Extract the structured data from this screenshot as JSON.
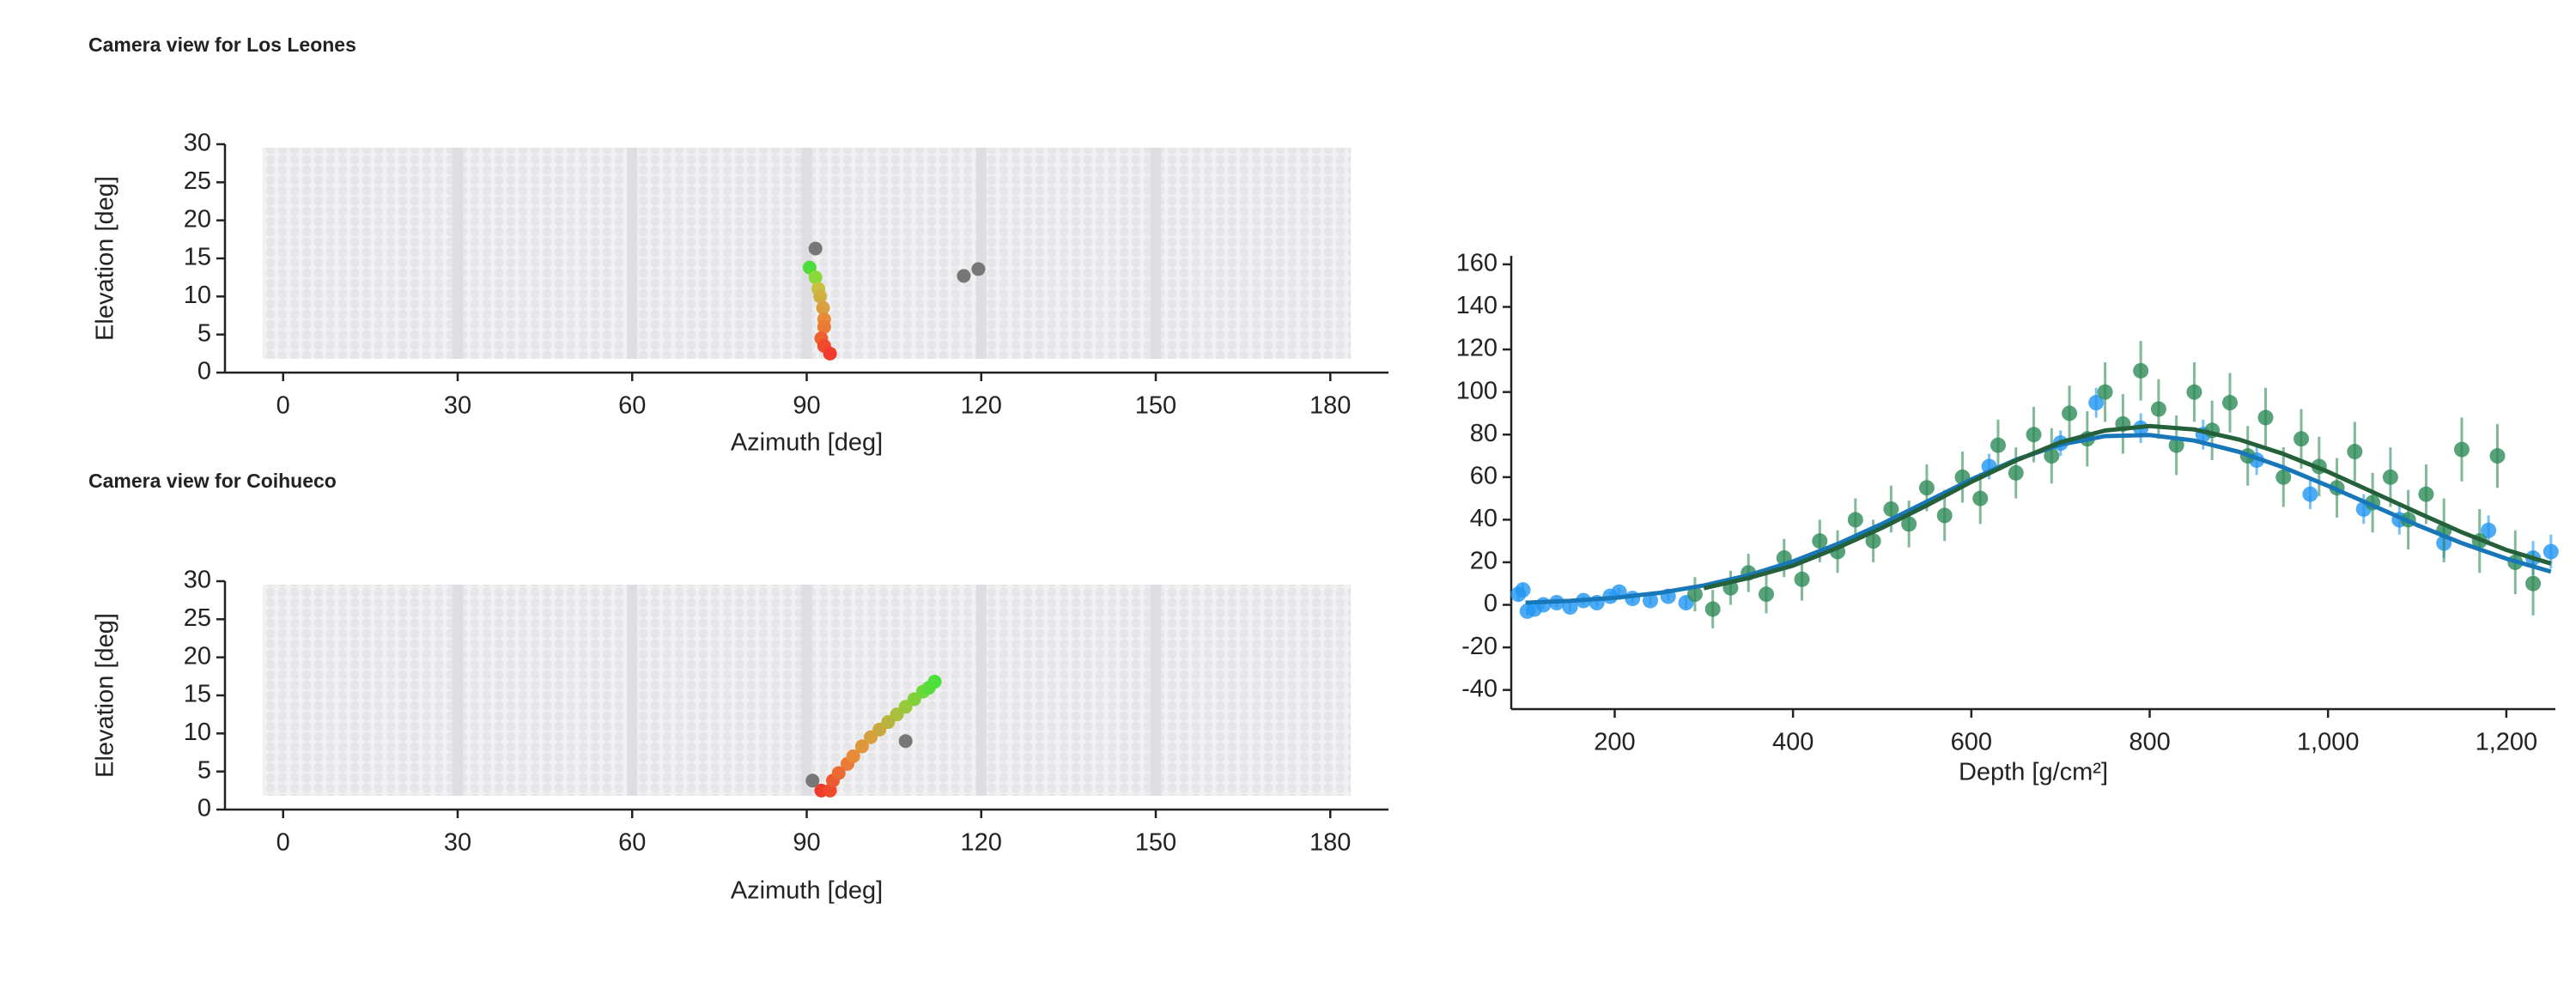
{
  "chart_data": [
    {
      "type": "scatter",
      "title": "Camera view for Los Leones",
      "xlabel": "Azimuth [deg]",
      "ylabel": "Elevation [deg]",
      "x": [
        90.5,
        91.5,
        92,
        92.3,
        92.8,
        93,
        93,
        92.5,
        93,
        94,
        91.5,
        117,
        119.5
      ],
      "values": [
        13.8,
        12.5,
        11,
        10,
        8.5,
        7,
        6,
        4.5,
        3.5,
        2.5,
        16.3,
        12.7,
        13.6
      ],
      "colors": [
        "#4cdc3c",
        "#8ad83a",
        "#c8c040",
        "#d0b040",
        "#d8a040",
        "#e88a38",
        "#ea7a34",
        "#ee6030",
        "#f04a2c",
        "#f03a2a",
        "#777777",
        "#777777",
        "#777777"
      ],
      "xlim": [
        -10,
        190
      ],
      "ylim": [
        0,
        30
      ],
      "xticks": [
        0,
        30,
        60,
        90,
        120,
        150,
        180
      ],
      "yticks": [
        0,
        5,
        10,
        15,
        20,
        25,
        30
      ]
    },
    {
      "type": "scatter",
      "title": "Camera view for Coihueco",
      "xlabel": "Azimuth [deg]",
      "ylabel": "Elevation [deg]",
      "x": [
        92.5,
        94,
        94.5,
        95.5,
        97,
        98,
        99.5,
        101,
        102.5,
        104,
        105.5,
        107,
        108.5,
        110,
        111,
        112,
        91,
        107
      ],
      "values": [
        2.5,
        2.5,
        3.8,
        4.8,
        6,
        7,
        8.3,
        9.5,
        10.5,
        11.5,
        12.5,
        13.5,
        14.5,
        15.5,
        16,
        16.8,
        3.8,
        9
      ],
      "colors": [
        "#f03a2a",
        "#f04a2c",
        "#ee5a30",
        "#ec6a32",
        "#ea7a34",
        "#e88a38",
        "#e0963a",
        "#d8a03c",
        "#c8a83c",
        "#b8b43c",
        "#a8c03c",
        "#98c83c",
        "#80d03a",
        "#68d83a",
        "#58dc3a",
        "#4ce03a",
        "#777777",
        "#777777"
      ],
      "xlim": [
        -10,
        190
      ],
      "ylim": [
        0,
        30
      ],
      "xticks": [
        0,
        30,
        60,
        90,
        120,
        150,
        180
      ],
      "yticks": [
        0,
        5,
        10,
        15,
        20,
        25,
        30
      ]
    },
    {
      "type": "profile",
      "xlabel": "Depth [g/cm²]",
      "xlim": [
        84,
        1255
      ],
      "ylim": [
        -49,
        164
      ],
      "xticks": [
        200,
        400,
        600,
        800,
        {
          "value": 1000,
          "label": "1,000"
        },
        {
          "value": 1200,
          "label": "1,200"
        }
      ],
      "yticks": [
        -40,
        -20,
        0,
        20,
        40,
        60,
        80,
        100,
        120,
        140,
        160
      ],
      "series": [
        {
          "type": "scatter",
          "color": "#2196f3",
          "x": [
            92,
            97,
            102,
            110,
            120,
            135,
            150,
            165,
            180,
            195,
            205,
            220,
            240,
            260,
            280,
            620,
            700,
            740,
            790,
            860,
            920,
            980,
            1040,
            1080,
            1130,
            1180,
            1230,
            1250
          ],
          "values": [
            5,
            7,
            -3,
            -2,
            0,
            1,
            -1,
            2,
            1,
            4,
            6,
            3,
            2,
            4,
            1,
            65,
            76,
            95,
            83,
            80,
            68,
            52,
            45,
            40,
            29,
            35,
            22,
            25
          ],
          "errors": [
            3,
            3,
            2,
            2,
            2,
            2,
            2,
            2,
            2,
            2,
            2,
            2,
            2,
            2,
            3,
            6,
            6,
            7,
            7,
            7,
            7,
            7,
            7,
            7,
            7,
            7,
            8,
            8
          ]
        },
        {
          "type": "scatter",
          "color": "#2e8b57",
          "x": [
            290,
            310,
            330,
            350,
            370,
            390,
            410,
            430,
            450,
            470,
            490,
            510,
            530,
            550,
            570,
            590,
            610,
            630,
            650,
            670,
            690,
            710,
            730,
            750,
            770,
            790,
            810,
            830,
            850,
            870,
            890,
            910,
            930,
            950,
            970,
            990,
            1010,
            1030,
            1050,
            1070,
            1090,
            1110,
            1130,
            1150,
            1170,
            1190,
            1210,
            1230
          ],
          "values": [
            5,
            -2,
            8,
            15,
            5,
            22,
            12,
            30,
            25,
            40,
            30,
            45,
            38,
            55,
            42,
            60,
            50,
            75,
            62,
            80,
            70,
            90,
            78,
            100,
            85,
            110,
            92,
            75,
            100,
            82,
            95,
            70,
            88,
            60,
            78,
            65,
            55,
            72,
            48,
            60,
            40,
            52,
            35,
            73,
            30,
            70,
            20,
            10
          ],
          "errors": [
            8,
            9,
            8,
            9,
            9,
            9,
            10,
            10,
            10,
            10,
            10,
            11,
            11,
            11,
            12,
            12,
            12,
            12,
            12,
            13,
            13,
            13,
            13,
            14,
            14,
            14,
            14,
            14,
            14,
            14,
            14,
            14,
            14,
            14,
            14,
            14,
            14,
            14,
            14,
            14,
            14,
            14,
            15,
            15,
            15,
            15,
            15,
            15
          ]
        },
        {
          "type": "line",
          "color": "#1877b8",
          "x": [
            100,
            150,
            200,
            250,
            300,
            350,
            400,
            450,
            500,
            550,
            600,
            650,
            700,
            750,
            800,
            850,
            900,
            950,
            1000,
            1050,
            1100,
            1150,
            1200,
            1250
          ],
          "values": [
            1.0,
            1.9,
            3.3,
            5.6,
            9.1,
            13.9,
            20.4,
            28.6,
            38.1,
            48.5,
            58.9,
            68.2,
            75.3,
            79.3,
            79.8,
            77.2,
            71.9,
            64.6,
            55.9,
            46.7,
            37.5,
            29.0,
            21.7,
            15.6
          ]
        },
        {
          "type": "line",
          "color": "#24603a",
          "x": [
            300,
            350,
            400,
            450,
            500,
            550,
            600,
            650,
            700,
            750,
            800,
            850,
            900,
            950,
            1000,
            1050,
            1100,
            1150,
            1200,
            1250
          ],
          "values": [
            7.8,
            12.6,
            18.4,
            26.8,
            36.2,
            46.7,
            57.8,
            67.8,
            76.4,
            81.9,
            84,
            82.4,
            77.7,
            70.9,
            62.5,
            53,
            43.4,
            34.1,
            25.8,
            19.4
          ]
        }
      ]
    }
  ]
}
